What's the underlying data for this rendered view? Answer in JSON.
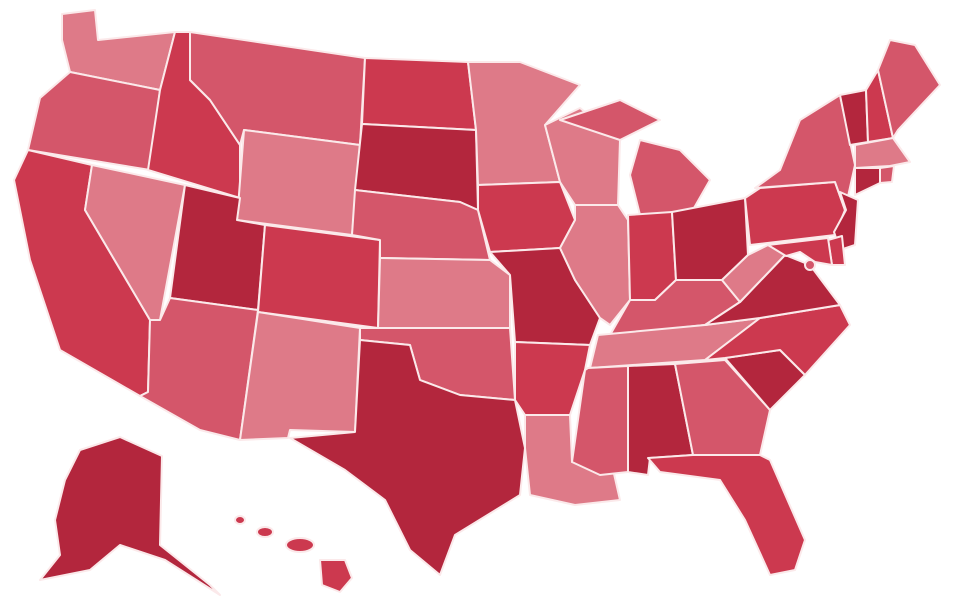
{
  "palette": {
    "tier1": "#b3263d",
    "tier2": "#cc394f",
    "tier3": "#d4566a",
    "tier4": "#de7a88"
  },
  "states": [
    {
      "id": "WA",
      "tier": 4
    },
    {
      "id": "OR",
      "tier": 3
    },
    {
      "id": "CA",
      "tier": 2
    },
    {
      "id": "NV",
      "tier": 4
    },
    {
      "id": "ID",
      "tier": 2
    },
    {
      "id": "MT",
      "tier": 3
    },
    {
      "id": "WY",
      "tier": 4
    },
    {
      "id": "UT",
      "tier": 1
    },
    {
      "id": "AZ",
      "tier": 3
    },
    {
      "id": "CO",
      "tier": 2
    },
    {
      "id": "NM",
      "tier": 4
    },
    {
      "id": "ND",
      "tier": 2
    },
    {
      "id": "SD",
      "tier": 1
    },
    {
      "id": "NE",
      "tier": 3
    },
    {
      "id": "KS",
      "tier": 4
    },
    {
      "id": "OK",
      "tier": 3
    },
    {
      "id": "TX",
      "tier": 1
    },
    {
      "id": "MN",
      "tier": 4
    },
    {
      "id": "IA",
      "tier": 2
    },
    {
      "id": "MO",
      "tier": 1
    },
    {
      "id": "AR",
      "tier": 2
    },
    {
      "id": "LA",
      "tier": 4
    },
    {
      "id": "WI",
      "tier": 4
    },
    {
      "id": "IL",
      "tier": 4
    },
    {
      "id": "MI",
      "tier": 3
    },
    {
      "id": "IN",
      "tier": 2
    },
    {
      "id": "OH",
      "tier": 1
    },
    {
      "id": "KY",
      "tier": 3
    },
    {
      "id": "TN",
      "tier": 4
    },
    {
      "id": "MS",
      "tier": 3
    },
    {
      "id": "AL",
      "tier": 1
    },
    {
      "id": "GA",
      "tier": 3
    },
    {
      "id": "FL",
      "tier": 2
    },
    {
      "id": "SC",
      "tier": 1
    },
    {
      "id": "NC",
      "tier": 2
    },
    {
      "id": "VA",
      "tier": 1
    },
    {
      "id": "WV",
      "tier": 4
    },
    {
      "id": "PA",
      "tier": 2
    },
    {
      "id": "NY",
      "tier": 3
    },
    {
      "id": "VT",
      "tier": 1
    },
    {
      "id": "NH",
      "tier": 2
    },
    {
      "id": "ME",
      "tier": 3
    },
    {
      "id": "MA",
      "tier": 4
    },
    {
      "id": "RI",
      "tier": 3
    },
    {
      "id": "CT",
      "tier": 1
    },
    {
      "id": "NJ",
      "tier": 1
    },
    {
      "id": "DE",
      "tier": 2
    },
    {
      "id": "MD",
      "tier": 2
    },
    {
      "id": "DC",
      "tier": 3
    },
    {
      "id": "AK",
      "tier": 1
    },
    {
      "id": "HI",
      "tier": 2
    }
  ]
}
